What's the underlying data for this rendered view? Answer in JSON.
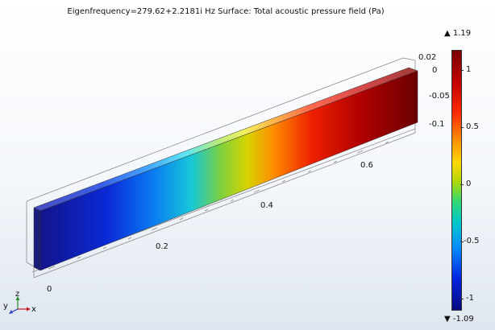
{
  "header": {
    "title": "Eigenfrequency=279.62+2.2181i Hz   Surface: Total acoustic pressure field (Pa)"
  },
  "axes": {
    "x_ticks": [
      "0",
      "0.2",
      "0.4",
      "0.6"
    ],
    "z_ticks": [
      "0.02",
      "0",
      "-0.05",
      "-0.1"
    ]
  },
  "colorbar": {
    "max_label": "▲ 1.19",
    "min_label": "▼ -1.09",
    "ticks": [
      "1",
      "0.5",
      "0",
      "-0.5",
      "-1"
    ]
  },
  "triad": {
    "x": "x",
    "y": "y",
    "z": "z"
  }
}
